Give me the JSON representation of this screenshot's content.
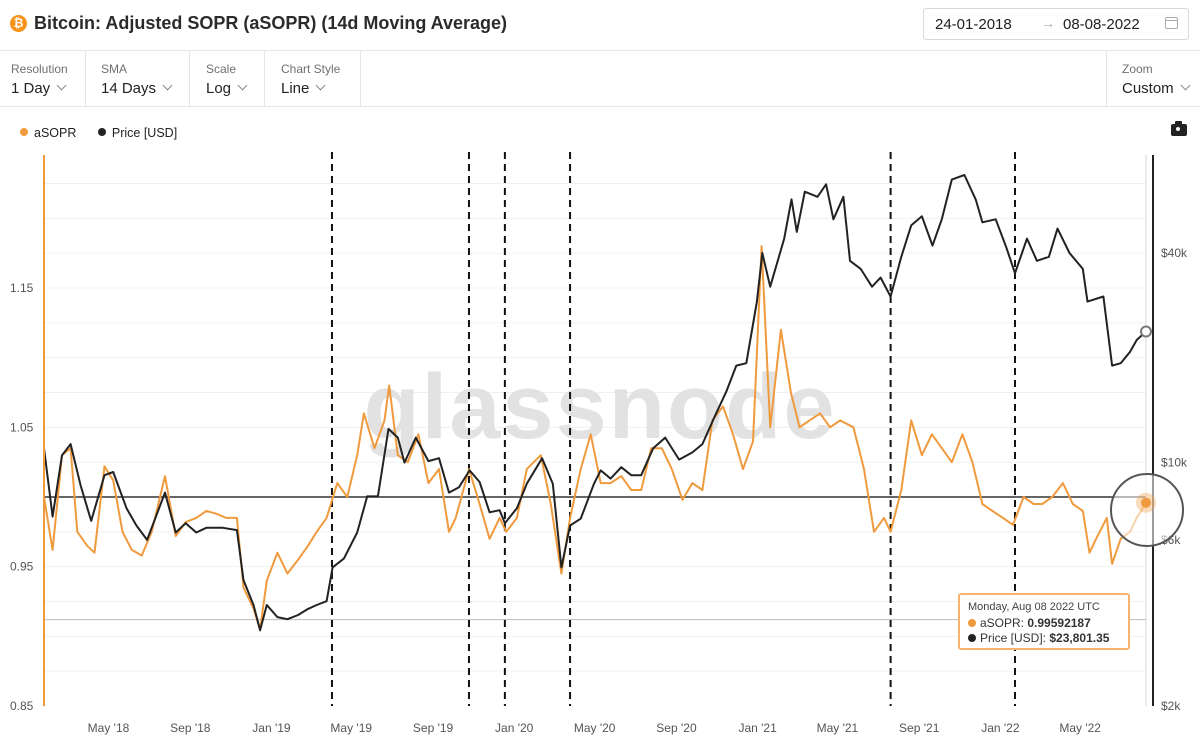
{
  "header": {
    "title": "Bitcoin: Adjusted SOPR (aSOPR) (14d Moving Average)",
    "icon": "bitcoin-icon",
    "date_from": "24-01-2018",
    "date_to": "08-08-2022"
  },
  "controls": [
    {
      "label": "Resolution",
      "value": "1 Day"
    },
    {
      "label": "SMA",
      "value": "14 Days"
    },
    {
      "label": "Scale",
      "value": "Log"
    },
    {
      "label": "Chart Style",
      "value": "Line"
    }
  ],
  "zoom": {
    "label": "Zoom",
    "value": "Custom"
  },
  "legend": [
    {
      "name": "aSOPR",
      "color": "#f09a3e"
    },
    {
      "name": "Price [USD]",
      "color": "#222222"
    }
  ],
  "watermark": "glassnode",
  "tooltip": {
    "date": "Monday, Aug 08 2022 UTC",
    "asopr_label": "aSOPR:",
    "asopr_value": "0.99592187",
    "price_label": "Price [USD]:",
    "price_value": "$23,801.35"
  },
  "chart_data": {
    "type": "line",
    "y_left": {
      "scale": "linear",
      "range": [
        0.85,
        1.25
      ],
      "ticks": [
        "1.15",
        "1.05",
        "0.95",
        "0.85"
      ],
      "tick_values": [
        1.15,
        1.05,
        0.95,
        0.85
      ]
    },
    "y_right": {
      "scale": "log",
      "range": [
        2000,
        70000
      ],
      "ticks": [
        "$40k",
        "$10k",
        "$6k",
        "$2k"
      ],
      "tick_values": [
        40000,
        10000,
        6000,
        2000
      ]
    },
    "x_range": [
      "2018-01-24",
      "2022-08-08"
    ],
    "x_ticks": [
      {
        "label": "May '18",
        "date": "2018-05-01"
      },
      {
        "label": "Sep '18",
        "date": "2018-09-01"
      },
      {
        "label": "Jan '19",
        "date": "2019-01-01"
      },
      {
        "label": "May '19",
        "date": "2019-05-01"
      },
      {
        "label": "Sep '19",
        "date": "2019-09-01"
      },
      {
        "label": "Jan '20",
        "date": "2020-01-01"
      },
      {
        "label": "May '20",
        "date": "2020-05-01"
      },
      {
        "label": "Sep '20",
        "date": "2020-09-01"
      },
      {
        "label": "Jan '21",
        "date": "2021-01-01"
      },
      {
        "label": "May '21",
        "date": "2021-05-01"
      },
      {
        "label": "Sep '21",
        "date": "2021-09-01"
      },
      {
        "label": "Jan '22",
        "date": "2022-01-01"
      },
      {
        "label": "May '22",
        "date": "2022-05-01"
      }
    ],
    "reference_lines": [
      1.0,
      0.912
    ],
    "vertical_markers": [
      "2019-04-02",
      "2019-10-25",
      "2019-12-18",
      "2020-03-25",
      "2021-07-20",
      "2022-01-23"
    ],
    "series": [
      {
        "name": "aSOPR",
        "color": "#f09a3e",
        "axis": "left",
        "points": [
          [
            "2018-01-24",
            1.0
          ],
          [
            "2018-02-06",
            0.962
          ],
          [
            "2018-02-20",
            1.03
          ],
          [
            "2018-03-05",
            1.035
          ],
          [
            "2018-03-15",
            0.975
          ],
          [
            "2018-03-30",
            0.965
          ],
          [
            "2018-04-10",
            0.96
          ],
          [
            "2018-04-25",
            1.022
          ],
          [
            "2018-05-08",
            1.012
          ],
          [
            "2018-05-22",
            0.975
          ],
          [
            "2018-06-05",
            0.962
          ],
          [
            "2018-06-20",
            0.958
          ],
          [
            "2018-07-05",
            0.975
          ],
          [
            "2018-07-25",
            1.015
          ],
          [
            "2018-08-10",
            0.972
          ],
          [
            "2018-08-25",
            0.982
          ],
          [
            "2018-09-10",
            0.985
          ],
          [
            "2018-09-25",
            0.99
          ],
          [
            "2018-10-10",
            0.988
          ],
          [
            "2018-10-25",
            0.985
          ],
          [
            "2018-11-10",
            0.985
          ],
          [
            "2018-11-20",
            0.935
          ],
          [
            "2018-12-05",
            0.92
          ],
          [
            "2018-12-15",
            0.905
          ],
          [
            "2018-12-25",
            0.94
          ],
          [
            "2019-01-10",
            0.96
          ],
          [
            "2019-01-25",
            0.945
          ],
          [
            "2019-02-10",
            0.955
          ],
          [
            "2019-02-25",
            0.965
          ],
          [
            "2019-03-10",
            0.975
          ],
          [
            "2019-03-25",
            0.985
          ],
          [
            "2019-04-10",
            1.01
          ],
          [
            "2019-04-25",
            1.0
          ],
          [
            "2019-05-10",
            1.03
          ],
          [
            "2019-05-20",
            1.06
          ],
          [
            "2019-06-05",
            1.035
          ],
          [
            "2019-06-20",
            1.055
          ],
          [
            "2019-06-27",
            1.08
          ],
          [
            "2019-07-10",
            1.03
          ],
          [
            "2019-07-25",
            1.025
          ],
          [
            "2019-08-10",
            1.045
          ],
          [
            "2019-08-25",
            1.01
          ],
          [
            "2019-09-10",
            1.02
          ],
          [
            "2019-09-25",
            0.975
          ],
          [
            "2019-10-05",
            0.985
          ],
          [
            "2019-10-25",
            1.02
          ],
          [
            "2019-11-10",
            0.995
          ],
          [
            "2019-11-25",
            0.97
          ],
          [
            "2019-12-10",
            0.985
          ],
          [
            "2019-12-20",
            0.975
          ],
          [
            "2020-01-05",
            0.985
          ],
          [
            "2020-01-20",
            1.02
          ],
          [
            "2020-02-10",
            1.03
          ],
          [
            "2020-02-25",
            0.995
          ],
          [
            "2020-03-12",
            0.945
          ],
          [
            "2020-03-25",
            0.985
          ],
          [
            "2020-04-10",
            1.02
          ],
          [
            "2020-04-25",
            1.045
          ],
          [
            "2020-05-10",
            1.01
          ],
          [
            "2020-05-25",
            1.01
          ],
          [
            "2020-06-10",
            1.015
          ],
          [
            "2020-06-25",
            1.005
          ],
          [
            "2020-07-10",
            1.005
          ],
          [
            "2020-07-25",
            1.035
          ],
          [
            "2020-08-10",
            1.035
          ],
          [
            "2020-08-25",
            1.02
          ],
          [
            "2020-09-10",
            0.998
          ],
          [
            "2020-09-25",
            1.01
          ],
          [
            "2020-10-10",
            1.005
          ],
          [
            "2020-10-25",
            1.055
          ],
          [
            "2020-11-10",
            1.065
          ],
          [
            "2020-11-25",
            1.045
          ],
          [
            "2020-12-10",
            1.02
          ],
          [
            "2020-12-25",
            1.04
          ],
          [
            "2021-01-07",
            1.18
          ],
          [
            "2021-01-20",
            1.05
          ],
          [
            "2021-02-05",
            1.12
          ],
          [
            "2021-02-20",
            1.075
          ],
          [
            "2021-03-05",
            1.05
          ],
          [
            "2021-03-20",
            1.055
          ],
          [
            "2021-04-05",
            1.06
          ],
          [
            "2021-04-20",
            1.05
          ],
          [
            "2021-05-05",
            1.055
          ],
          [
            "2021-05-25",
            1.05
          ],
          [
            "2021-06-10",
            1.02
          ],
          [
            "2021-06-25",
            0.975
          ],
          [
            "2021-07-10",
            0.985
          ],
          [
            "2021-07-20",
            0.975
          ],
          [
            "2021-08-05",
            1.005
          ],
          [
            "2021-08-20",
            1.055
          ],
          [
            "2021-09-05",
            1.03
          ],
          [
            "2021-09-20",
            1.045
          ],
          [
            "2021-10-05",
            1.035
          ],
          [
            "2021-10-20",
            1.025
          ],
          [
            "2021-11-05",
            1.045
          ],
          [
            "2021-11-20",
            1.025
          ],
          [
            "2021-12-05",
            0.995
          ],
          [
            "2021-12-20",
            0.99
          ],
          [
            "2022-01-05",
            0.985
          ],
          [
            "2022-01-20",
            0.98
          ],
          [
            "2022-02-05",
            1.0
          ],
          [
            "2022-02-20",
            0.995
          ],
          [
            "2022-03-05",
            0.995
          ],
          [
            "2022-03-20",
            1.0
          ],
          [
            "2022-04-05",
            1.01
          ],
          [
            "2022-04-20",
            0.995
          ],
          [
            "2022-05-05",
            0.99
          ],
          [
            "2022-05-15",
            0.96
          ],
          [
            "2022-05-25",
            0.97
          ],
          [
            "2022-06-10",
            0.985
          ],
          [
            "2022-06-18",
            0.952
          ],
          [
            "2022-07-01",
            0.97
          ],
          [
            "2022-07-15",
            0.975
          ],
          [
            "2022-07-25",
            0.985
          ],
          [
            "2022-08-08",
            0.9959
          ]
        ]
      },
      {
        "name": "Price [USD]",
        "color": "#222222",
        "axis": "right",
        "points": [
          [
            "2018-01-24",
            11000
          ],
          [
            "2018-02-06",
            7000
          ],
          [
            "2018-02-20",
            10500
          ],
          [
            "2018-03-05",
            11300
          ],
          [
            "2018-03-20",
            8600
          ],
          [
            "2018-04-05",
            6800
          ],
          [
            "2018-04-25",
            9200
          ],
          [
            "2018-05-08",
            9400
          ],
          [
            "2018-05-28",
            7400
          ],
          [
            "2018-06-12",
            6600
          ],
          [
            "2018-06-28",
            6000
          ],
          [
            "2018-07-25",
            8200
          ],
          [
            "2018-08-10",
            6300
          ],
          [
            "2018-08-25",
            6700
          ],
          [
            "2018-09-10",
            6300
          ],
          [
            "2018-09-25",
            6500
          ],
          [
            "2018-10-20",
            6500
          ],
          [
            "2018-11-10",
            6400
          ],
          [
            "2018-11-20",
            4600
          ],
          [
            "2018-12-05",
            3900
          ],
          [
            "2018-12-15",
            3300
          ],
          [
            "2018-12-25",
            3900
          ],
          [
            "2019-01-10",
            3600
          ],
          [
            "2019-01-25",
            3550
          ],
          [
            "2019-02-10",
            3650
          ],
          [
            "2019-02-25",
            3800
          ],
          [
            "2019-03-10",
            3900
          ],
          [
            "2019-03-25",
            4000
          ],
          [
            "2019-04-03",
            5000
          ],
          [
            "2019-04-20",
            5300
          ],
          [
            "2019-05-10",
            6300
          ],
          [
            "2019-05-25",
            8000
          ],
          [
            "2019-06-10",
            8000
          ],
          [
            "2019-06-26",
            12500
          ],
          [
            "2019-07-10",
            11800
          ],
          [
            "2019-07-20",
            10000
          ],
          [
            "2019-08-06",
            11800
          ],
          [
            "2019-08-25",
            10100
          ],
          [
            "2019-09-10",
            10300
          ],
          [
            "2019-09-25",
            8200
          ],
          [
            "2019-10-10",
            8500
          ],
          [
            "2019-10-26",
            9500
          ],
          [
            "2019-11-10",
            8800
          ],
          [
            "2019-11-25",
            7200
          ],
          [
            "2019-12-10",
            7300
          ],
          [
            "2019-12-18",
            6700
          ],
          [
            "2020-01-05",
            7400
          ],
          [
            "2020-01-20",
            8700
          ],
          [
            "2020-02-12",
            10300
          ],
          [
            "2020-02-28",
            8700
          ],
          [
            "2020-03-12",
            5000
          ],
          [
            "2020-03-25",
            6600
          ],
          [
            "2020-04-10",
            6900
          ],
          [
            "2020-04-30",
            8700
          ],
          [
            "2020-05-10",
            9500
          ],
          [
            "2020-05-25",
            9000
          ],
          [
            "2020-06-10",
            9700
          ],
          [
            "2020-06-25",
            9200
          ],
          [
            "2020-07-10",
            9200
          ],
          [
            "2020-07-28",
            11000
          ],
          [
            "2020-08-15",
            11800
          ],
          [
            "2020-09-05",
            10200
          ],
          [
            "2020-09-25",
            10700
          ],
          [
            "2020-10-10",
            11300
          ],
          [
            "2020-10-28",
            13500
          ],
          [
            "2020-11-15",
            16000
          ],
          [
            "2020-11-30",
            19000
          ],
          [
            "2020-12-15",
            19300
          ],
          [
            "2020-12-31",
            29000
          ],
          [
            "2021-01-08",
            40000
          ],
          [
            "2021-01-20",
            32000
          ],
          [
            "2021-02-10",
            44000
          ],
          [
            "2021-02-21",
            57000
          ],
          [
            "2021-03-01",
            46000
          ],
          [
            "2021-03-13",
            60000
          ],
          [
            "2021-04-01",
            58000
          ],
          [
            "2021-04-14",
            63000
          ],
          [
            "2021-04-25",
            50000
          ],
          [
            "2021-05-10",
            58000
          ],
          [
            "2021-05-20",
            38000
          ],
          [
            "2021-06-05",
            36000
          ],
          [
            "2021-06-22",
            32000
          ],
          [
            "2021-07-05",
            34000
          ],
          [
            "2021-07-20",
            30000
          ],
          [
            "2021-08-05",
            39000
          ],
          [
            "2021-08-20",
            48000
          ],
          [
            "2021-09-05",
            51000
          ],
          [
            "2021-09-21",
            42000
          ],
          [
            "2021-10-05",
            50000
          ],
          [
            "2021-10-20",
            65000
          ],
          [
            "2021-11-08",
            67000
          ],
          [
            "2021-11-25",
            57000
          ],
          [
            "2021-12-05",
            49000
          ],
          [
            "2021-12-25",
            50000
          ],
          [
            "2022-01-10",
            41500
          ],
          [
            "2022-01-23",
            35000
          ],
          [
            "2022-02-10",
            44000
          ],
          [
            "2022-02-25",
            38000
          ],
          [
            "2022-03-15",
            39000
          ],
          [
            "2022-03-28",
            47000
          ],
          [
            "2022-04-15",
            40000
          ],
          [
            "2022-05-05",
            36000
          ],
          [
            "2022-05-12",
            29000
          ],
          [
            "2022-06-05",
            30000
          ],
          [
            "2022-06-18",
            19000
          ],
          [
            "2022-07-01",
            19300
          ],
          [
            "2022-07-15",
            20800
          ],
          [
            "2022-07-25",
            22500
          ],
          [
            "2022-08-08",
            23801
          ]
        ]
      }
    ]
  }
}
